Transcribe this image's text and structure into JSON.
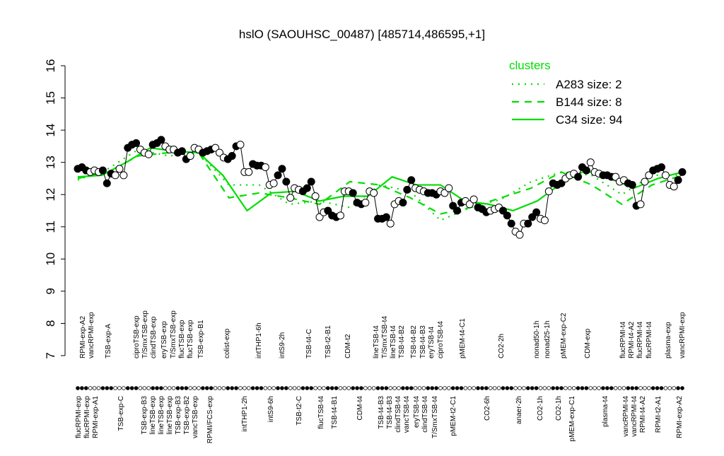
{
  "chart_data": {
    "type": "line",
    "title": "hslO (SAOUHSC_00487) [485714,486595,+1]",
    "ylim": [
      7,
      16
    ],
    "yticks": [
      7,
      8,
      9,
      10,
      11,
      12,
      13,
      14,
      15,
      16
    ],
    "grid": false,
    "legend": {
      "title": "clusters",
      "placement": "top-right",
      "entries": [
        {
          "label": "A283 size: 2",
          "style": "dotted"
        },
        {
          "label": "B144 size: 8",
          "style": "dashed"
        },
        {
          "label": "C34 size: 94",
          "style": "solid"
        }
      ]
    },
    "colors": {
      "cluster": "#00dd00",
      "points": "#000000"
    },
    "top_labels": [
      "RPMI-exp-A2",
      "vancRPMI-exp",
      "TSB-exp-A",
      "ciproTSB-exp",
      "T/SmxTSB-exp",
      "clindTSB-exp",
      "eryTSB-exp",
      "T/SmxTSB-exp",
      "flucTSB-exp",
      "flucTSB-exp",
      "TSB-exp-B1",
      "colist-exp",
      "intTHP1-6h",
      "intS9-2h",
      "TSB-t4-C",
      "TSB-t2-B1",
      "CDM-t2",
      "lineTSB-t4",
      "T/SmxTSB-t4",
      "lineTSB-t4",
      "TSB-t4-B2",
      "TSB-t4-B2",
      "TSB-t4-B3",
      "eryTSB-t4",
      "ciproTSB-t4",
      "pMEM-t4-C1",
      "CO2-2h",
      "nonad50-1h",
      "nonad25-1h",
      "pMEM-exp-C2",
      "CDM-exp",
      "flucRPMI-t4",
      "RPMI-t4-A2",
      "flucRPMI-t4",
      "flucRPMI-t4",
      "plasma-exp",
      "vancRPMI-exp"
    ],
    "bottom_labels": [
      "flucRPMI-exp",
      "flucRPMI-exp",
      "RPMI-exp-A1",
      "TSB-exp-C",
      "TSB-exp-B3",
      "lineTSB-exp",
      "lineTSB-exp",
      "lineTSB-exp",
      "TSB-exp-B3",
      "TSB-exp-B2",
      "vancTSB-exp",
      "RPMI/FCS-exp",
      "intTHP1-2h",
      "intS9-6h",
      "TSB-t2-C",
      "flucTSB-t4",
      "TSB-t4-B1",
      "CDM-t4",
      "TSB-t4-B3",
      "TSB-t4-B3",
      "clindTSB-t4",
      "vancTSB-t4",
      "eryTSB-t4",
      "clindTSB-t4",
      "T/SmxTSB-t4",
      "pMEM-t2-C1",
      "CO2-6h",
      "anaer-2h",
      "CO2-1h",
      "CO2-1h",
      "pMEM-exp-C1",
      "plasma-t4",
      "vancRPMI-t4",
      "vancRPMI-t4",
      "RPMI-t4-A2",
      "RPMI-t2-A1",
      "RPMI-exp-A2"
    ],
    "values": [
      12.8,
      12.85,
      12.75,
      12.7,
      12.75,
      12.7,
      12.75,
      12.35,
      12.65,
      12.6,
      12.8,
      12.6,
      13.45,
      13.55,
      13.6,
      13.4,
      13.3,
      13.25,
      13.55,
      13.6,
      13.7,
      13.5,
      13.4,
      13.4,
      13.3,
      13.35,
      13.1,
      13.2,
      13.45,
      13.4,
      13.3,
      13.35,
      13.4,
      13.45,
      13.3,
      13.15,
      13.1,
      13.2,
      13.5,
      13.55,
      12.7,
      12.7,
      12.95,
      12.9,
      12.9,
      12.85,
      12.3,
      12.35,
      12.6,
      12.8,
      12.4,
      11.9,
      12.2,
      12.15,
      12.1,
      12.2,
      12.4,
      11.95,
      11.3,
      11.45,
      11.5,
      11.35,
      11.3,
      11.35,
      12.1,
      12.1,
      12.05,
      11.75,
      11.7,
      11.75,
      12.1,
      12.05,
      11.25,
      11.25,
      11.3,
      11.1,
      11.7,
      11.8,
      11.75,
      12.15,
      12.45,
      12.2,
      12.15,
      12.1,
      12.05,
      12.05,
      12.0,
      12.1,
      12.05,
      12.2,
      11.65,
      11.5,
      11.75,
      11.8,
      11.7,
      11.85,
      11.6,
      11.55,
      11.45,
      11.5,
      11.55,
      11.6,
      11.5,
      11.35,
      11.1,
      10.85,
      10.75,
      11.1,
      11.1,
      11.3,
      11.45,
      11.25,
      11.2,
      12.1,
      12.35,
      12.3,
      12.35,
      12.5,
      12.6,
      12.65,
      12.55,
      12.85,
      12.75,
      13.0,
      12.7,
      12.65,
      12.6,
      12.6,
      12.55,
      12.55,
      12.4,
      12.45,
      12.35,
      12.3,
      11.65,
      11.7,
      12.4,
      12.6,
      12.75,
      12.8,
      12.85,
      12.6,
      12.3,
      12.25,
      12.45,
      12.7
    ],
    "clusters": [
      {
        "name": "C34",
        "style": "solid",
        "values": [
          12.55,
          12.6,
          13.0,
          13.45,
          13.35,
          13.3,
          12.6,
          11.5,
          12.05,
          12.1,
          11.8,
          11.95,
          11.95,
          12.55,
          12.3,
          12.3,
          11.8,
          11.7,
          11.5,
          11.8,
          12.35,
          12.75,
          12.5,
          12.2,
          12.5,
          12.7
        ]
      },
      {
        "name": "B144",
        "style": "dashed",
        "values": [
          12.5,
          12.7,
          13.2,
          13.3,
          13.3,
          11.9,
          12.05,
          11.9,
          11.7,
          12.4,
          12.3,
          11.9,
          11.4,
          11.6,
          11.9,
          12.2,
          12.7,
          12.3,
          11.7,
          12.3,
          12.6
        ]
      },
      {
        "name": "A283",
        "style": "dotted",
        "values": [
          12.45,
          12.8,
          13.4,
          13.2,
          13.3,
          12.3,
          12.3,
          11.7,
          11.8,
          11.6,
          12.3,
          12.1,
          11.2,
          11.6,
          11.85,
          12.4,
          12.7,
          12.6,
          12.0,
          12.6,
          12.6
        ]
      }
    ]
  }
}
